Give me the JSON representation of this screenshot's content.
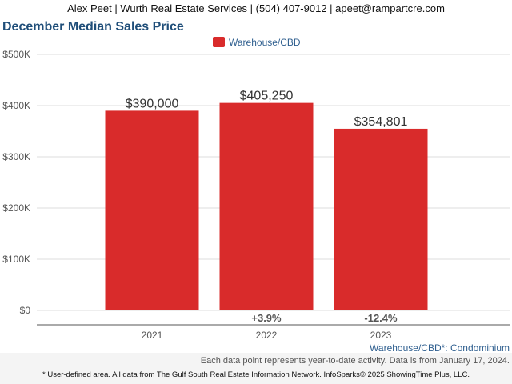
{
  "header": {
    "text": "Alex Peet | Wurth Real Estate Services | (504) 407-9012 | apeet@rampartcre.com"
  },
  "chart_data": {
    "type": "bar",
    "title": "December Median Sales Price",
    "categories": [
      "2021",
      "2022",
      "2023"
    ],
    "series": [
      {
        "name": "Warehouse/CBD",
        "values": [
          390000,
          405250,
          354801
        ],
        "color": "#d92b2b"
      }
    ],
    "value_labels": [
      "$390,000",
      "$405,250",
      "$354,801"
    ],
    "change_labels": [
      "",
      "+3.9%",
      "-12.4%"
    ],
    "y_ticks": [
      "$0",
      "$100K",
      "$200K",
      "$300K",
      "$400K",
      "$500K"
    ],
    "ylim": [
      0,
      500000
    ],
    "grid": true,
    "legend_position": "top-center"
  },
  "footer": {
    "subtitle": "Warehouse/CBD*: Condominium",
    "note": "Each data point represents year-to-date activity. Data is from January 17, 2024.",
    "source": "* User-defined area. All data from The Gulf South Real Estate Information Network. InfoSparks© 2025 ShowingTime Plus, LLC."
  }
}
